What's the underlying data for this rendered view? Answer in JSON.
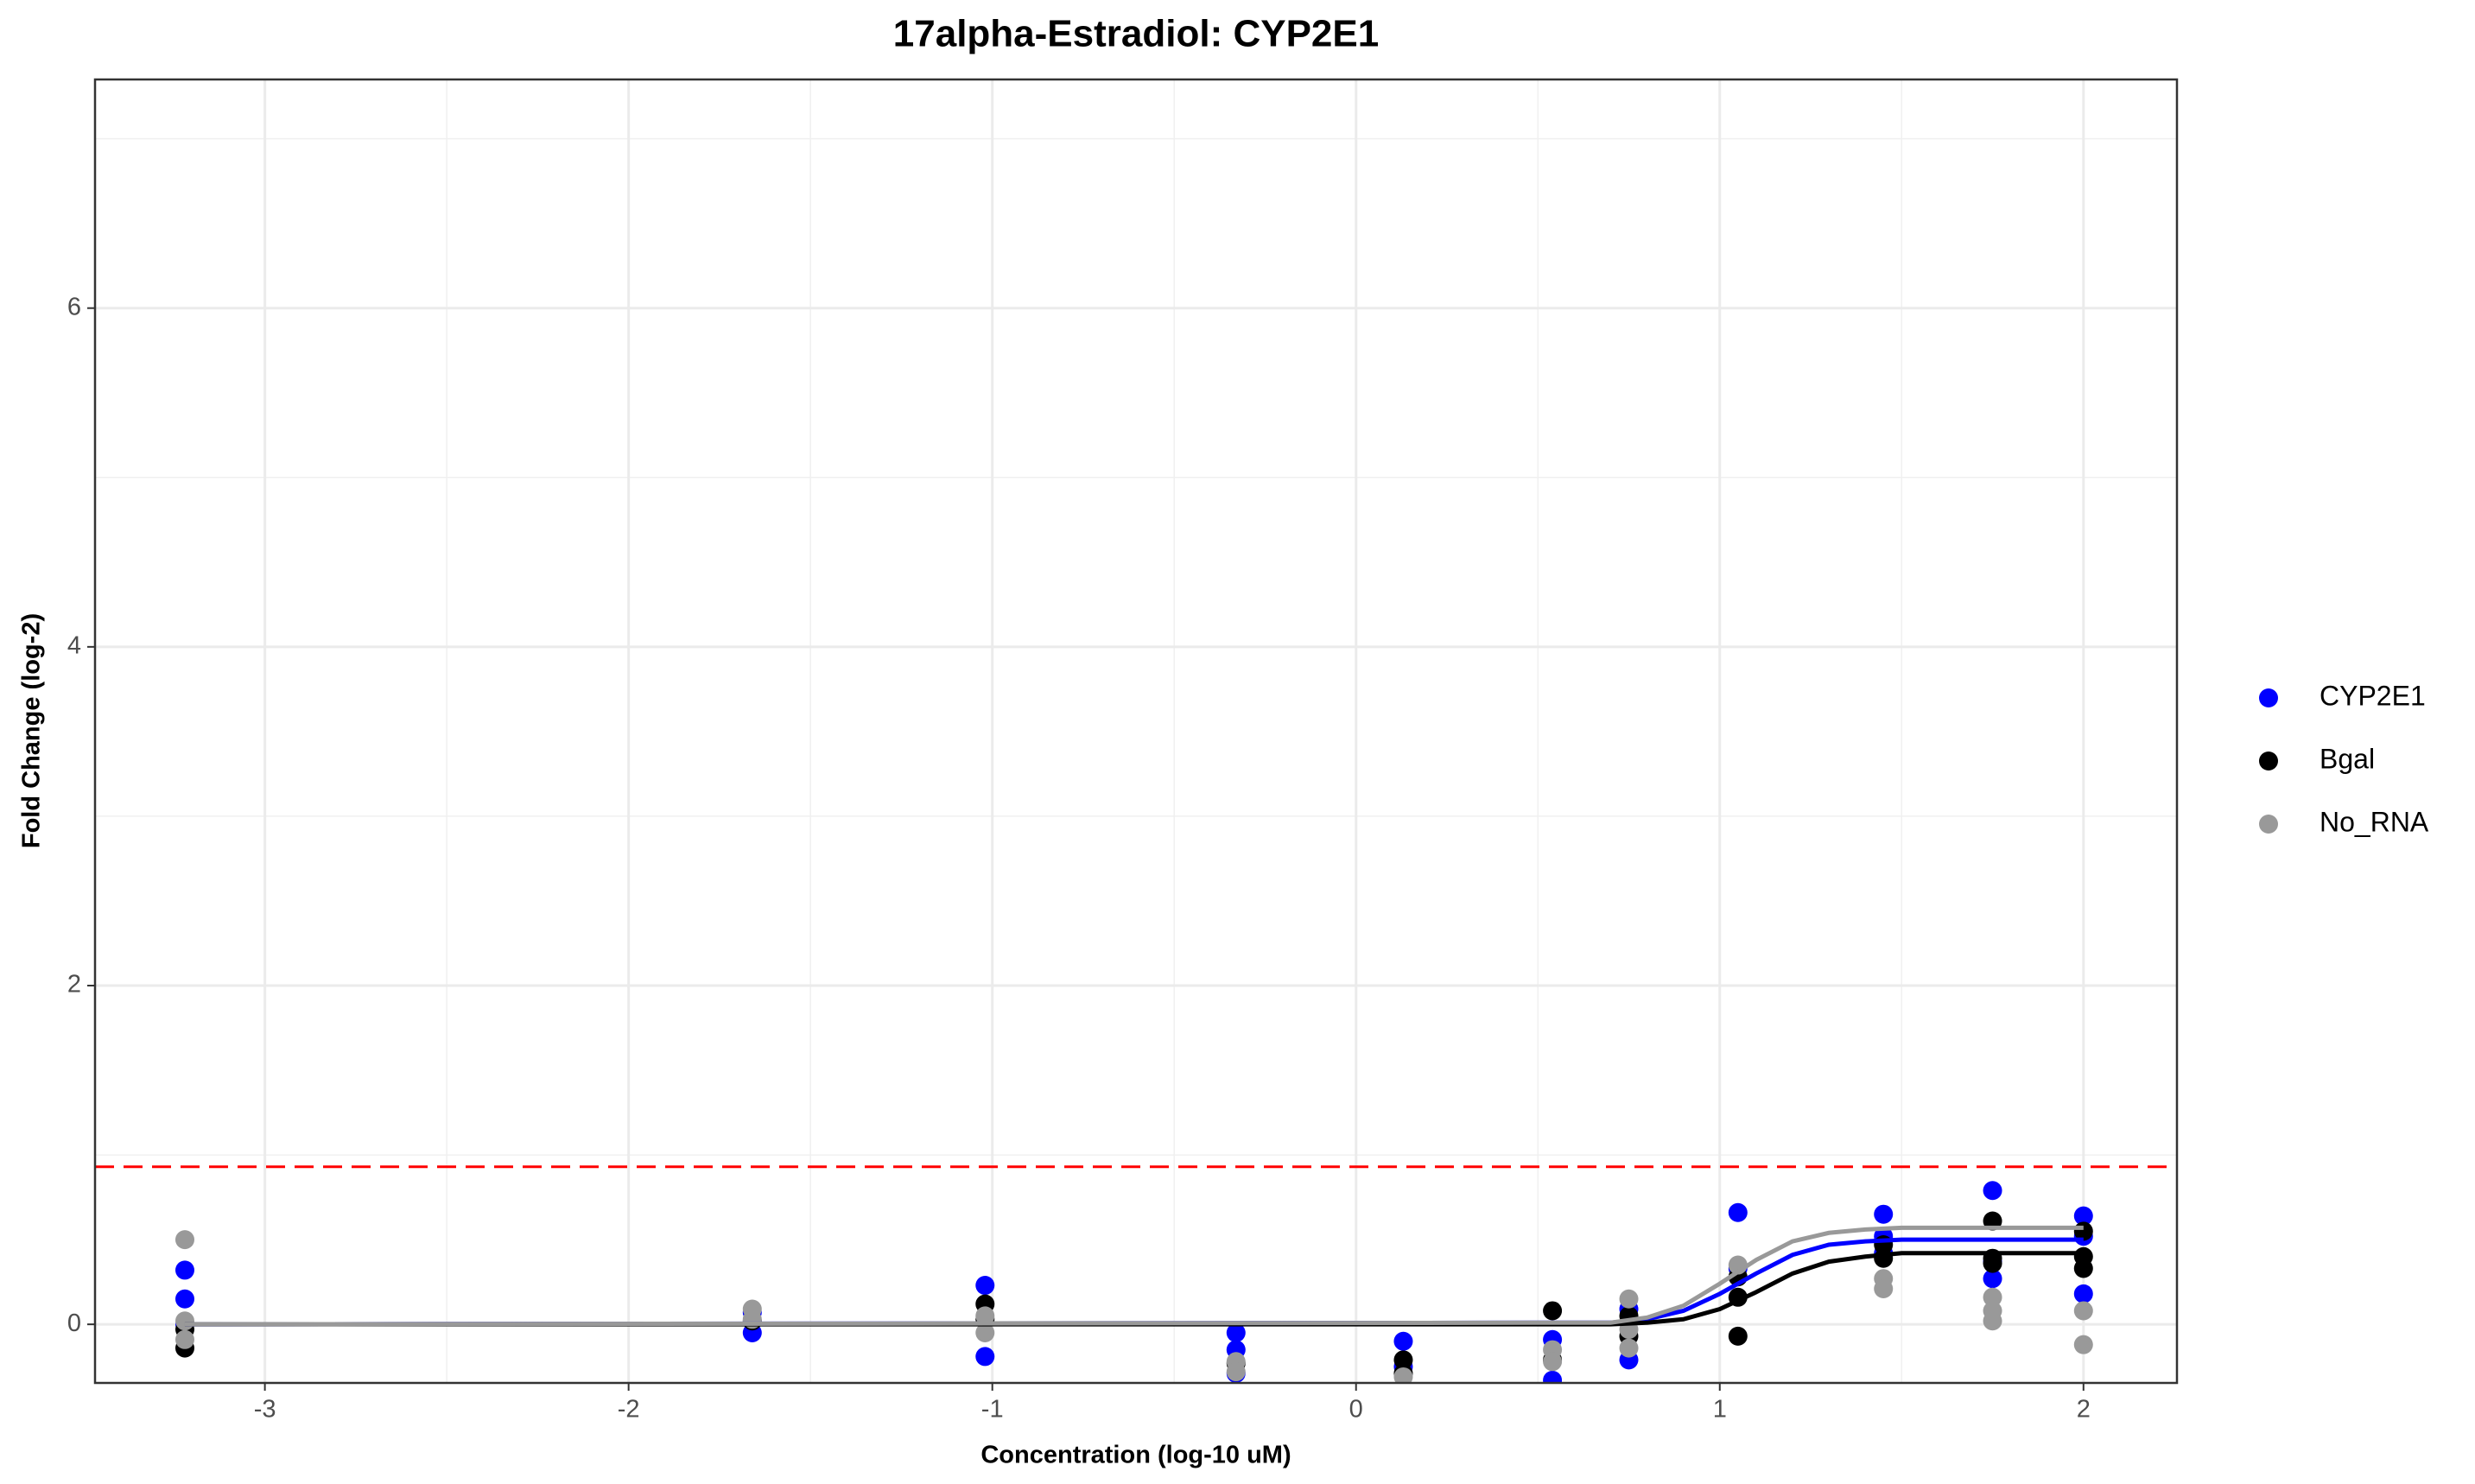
{
  "chart_data": {
    "type": "scatter",
    "title": "17alpha-Estradiol: CYP2E1",
    "x_label": "Concentration (log-10 uM)",
    "y_label": "Fold Change (log-2)",
    "xlim": [
      -3.467,
      2.257
    ],
    "ylim": [
      -0.346,
      7.35
    ],
    "xticks": [
      -3,
      -2,
      -1,
      0,
      1,
      2
    ],
    "yticks": [
      0,
      2,
      4,
      6
    ],
    "grid": true,
    "minor_grid": true,
    "legend": "right",
    "threshold": {
      "value": 0.93,
      "color": "#ff0000",
      "dashed": true
    },
    "series": [
      {
        "name": "CYP2E1",
        "color": "#0000ff",
        "x": [
          -3.22,
          -3.22,
          -3.22,
          -1.66,
          -1.66,
          -1.02,
          -1.02,
          -0.33,
          -0.33,
          -0.33,
          0.13,
          0.13,
          0.54,
          0.54,
          0.75,
          0.75,
          1.05,
          1.05,
          1.45,
          1.45,
          1.45,
          1.75,
          1.75,
          1.75,
          2.0,
          2.0,
          2.0
        ],
        "values": [
          0.32,
          0.15,
          0,
          -0.05,
          0.07,
          0.23,
          -0.19,
          -0.05,
          -0.15,
          -0.29,
          -0.1,
          -0.25,
          -0.33,
          -0.09,
          -0.21,
          0.09,
          0.66,
          0.33,
          0.65,
          0.52,
          0.42,
          0.79,
          0.27,
          0.37,
          0.64,
          0.18,
          0.52
        ],
        "fit_x": [
          -3.22,
          0.7,
          0.8,
          0.9,
          1.0,
          1.1,
          1.2,
          1.3,
          1.4,
          1.5,
          2.0
        ],
        "fit_values": [
          0,
          0.01,
          0.03,
          0.08,
          0.18,
          0.3,
          0.41,
          0.47,
          0.49,
          0.5,
          0.5
        ]
      },
      {
        "name": "Bgal",
        "color": "#000000",
        "x": [
          -3.22,
          -3.22,
          -1.66,
          -1.02,
          -1.02,
          -0.33,
          0.13,
          0.13,
          0.54,
          0.54,
          0.75,
          0.75,
          1.05,
          1.05,
          1.05,
          1.45,
          1.45,
          1.75,
          1.75,
          1.75,
          2.0,
          2.0,
          2.0
        ],
        "values": [
          -0.14,
          -0.03,
          0.02,
          0.12,
          0.03,
          -0.23,
          -0.21,
          -0.29,
          0.08,
          -0.21,
          0.05,
          -0.07,
          -0.07,
          0.16,
          0.28,
          0.47,
          0.39,
          0.61,
          0.36,
          0.39,
          0.55,
          0.4,
          0.33
        ],
        "fit_x": [
          -3.22,
          0.7,
          0.8,
          0.9,
          1.0,
          1.1,
          1.2,
          1.3,
          1.4,
          1.5,
          2.0
        ],
        "fit_values": [
          0,
          0,
          0.01,
          0.03,
          0.09,
          0.19,
          0.3,
          0.37,
          0.4,
          0.42,
          0.42
        ]
      },
      {
        "name": "No_RNA",
        "color": "#999999",
        "x": [
          -3.22,
          -3.22,
          -3.22,
          -1.66,
          -1.66,
          -1.02,
          -1.02,
          -0.33,
          -0.33,
          0.13,
          0.54,
          0.54,
          0.75,
          0.75,
          0.75,
          1.05,
          1.45,
          1.45,
          1.75,
          1.75,
          1.75,
          2.0,
          2.0
        ],
        "values": [
          0.5,
          0.02,
          -0.09,
          0.09,
          0.03,
          0.05,
          -0.05,
          -0.22,
          -0.28,
          -0.31,
          -0.15,
          -0.22,
          0.15,
          -0.03,
          -0.14,
          0.35,
          0.27,
          0.21,
          0.16,
          0.02,
          0.08,
          -0.12,
          0.08
        ],
        "fit_x": [
          -3.22,
          0.7,
          0.8,
          0.9,
          1.0,
          1.1,
          1.2,
          1.3,
          1.4,
          1.5,
          2.0
        ],
        "fit_values": [
          0,
          0.01,
          0.04,
          0.11,
          0.24,
          0.38,
          0.49,
          0.54,
          0.56,
          0.57,
          0.57
        ]
      }
    ]
  }
}
